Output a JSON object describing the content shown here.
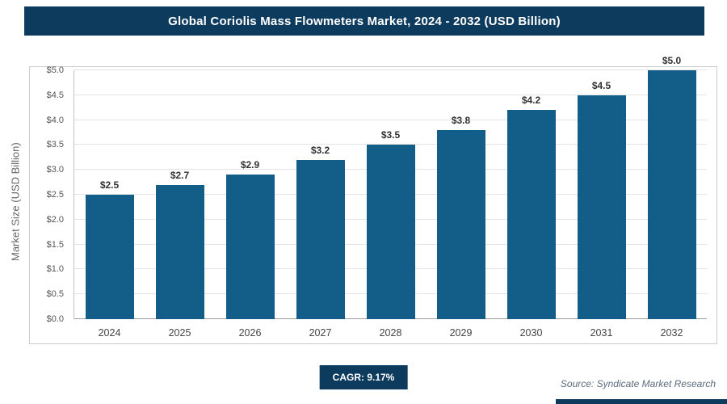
{
  "header": {
    "title": "Global Coriolis Mass Flowmeters Market, 2024 - 2032 (USD Billion)"
  },
  "chart_data": {
    "type": "bar",
    "title": "Global Coriolis Mass Flowmeters Market, 2024 - 2032 (USD Billion)",
    "categories": [
      "2024",
      "2025",
      "2026",
      "2027",
      "2028",
      "2029",
      "2030",
      "2031",
      "2032"
    ],
    "values": [
      2.5,
      2.7,
      2.9,
      3.2,
      3.5,
      3.8,
      4.2,
      4.5,
      5.0
    ],
    "value_labels": [
      "$2.5",
      "$2.7",
      "$2.9",
      "$3.2",
      "$3.5",
      "$3.8",
      "$4.2",
      "$4.5",
      "$5.0"
    ],
    "xlabel": "",
    "ylabel": "Market Size (USD Billion)",
    "ylim": [
      0,
      5
    ],
    "ytick_step": 0.5,
    "ytick_labels": [
      "$0.0",
      "$0.5",
      "$1.0",
      "$1.5",
      "$2.0",
      "$2.5",
      "$3.0",
      "$3.5",
      "$4.0",
      "$4.5",
      "$5.0"
    ],
    "grid": true,
    "legend": "none"
  },
  "footer": {
    "cagr_label": "CAGR: 9.17%",
    "source": "Source: Syndicate Market Research"
  },
  "colors": {
    "header_bg": "#0d3b5e",
    "bar": "#135d89",
    "badge_bg": "#0d3b5e",
    "accent_bg": "#0d3b5e"
  }
}
